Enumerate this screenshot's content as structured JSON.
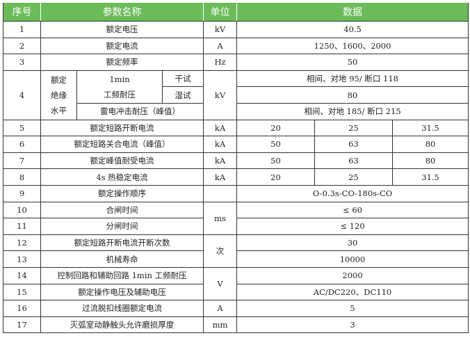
{
  "header": {
    "no": "序号",
    "param": "参数名称",
    "unit": "单位",
    "data": "数据"
  },
  "rows": [
    {
      "no": "1",
      "param": "额定电压",
      "unit": "kV",
      "value": "40.5"
    },
    {
      "no": "2",
      "param": "额定电流",
      "unit": "A",
      "value": "1250、1600、2000"
    },
    {
      "no": "3",
      "param": "额定频率",
      "unit": "Hz",
      "value": "50"
    },
    {
      "no": "4",
      "group": "额定绝缘水平",
      "group_lines": [
        "额定",
        "绝缘",
        "水平"
      ],
      "sub1_a": "1min",
      "sub1_b": "工频耐压",
      "dry": "干试",
      "wet": "湿试",
      "sub2": "雷电冲击耐压（峰值）",
      "unit": "kV",
      "dry_value": "相间、对地 95/ 断口 118",
      "wet_value": "80",
      "lightning_value": "相间、对地 185/ 断口 215"
    },
    {
      "no": "5",
      "param": "额定短路开断电流",
      "unit": "kA",
      "values": [
        "20",
        "25",
        "31.5"
      ]
    },
    {
      "no": "6",
      "param": "额定短路关合电流（峰值）",
      "unit": "kA",
      "values": [
        "50",
        "63",
        "80"
      ]
    },
    {
      "no": "7",
      "param": "额定峰值耐受电流",
      "unit": "kA",
      "values": [
        "50",
        "63",
        "80"
      ]
    },
    {
      "no": "8",
      "param": "4s 热稳定电流",
      "unit": "kA",
      "values": [
        "20",
        "25",
        "31.5"
      ]
    },
    {
      "no": "9",
      "param": "额定操作顺序",
      "unit": "",
      "value": "O-0.3s-CO-180s-CO"
    },
    {
      "no": "10",
      "param": "合闸时间",
      "unit": "ms",
      "value": "≤ 60"
    },
    {
      "no": "11",
      "param": "分闸时间",
      "value": "≤ 120"
    },
    {
      "no": "12",
      "param": "额定短路开断电流开断次数",
      "unit": "次",
      "value": "30"
    },
    {
      "no": "13",
      "param": "机械寿命",
      "value": "10000"
    },
    {
      "no": "14",
      "param": "控制回路和辅助回路 1min 工频耐压",
      "unit": "V",
      "value": "2000"
    },
    {
      "no": "15",
      "param": "额定操作电压及辅助电压",
      "value": "AC/DC220、DC110"
    },
    {
      "no": "16",
      "param": "过流脱扣线圈额定电流",
      "unit": "A",
      "value": "5"
    },
    {
      "no": "17",
      "param": "灭弧室动静触头允许磨损厚度",
      "unit": "mm",
      "value": "3"
    }
  ]
}
